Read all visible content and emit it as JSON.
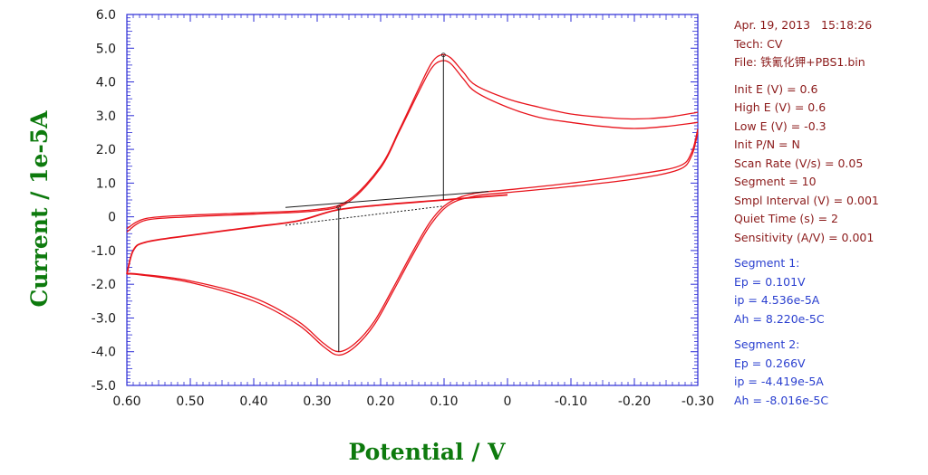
{
  "chart_data": {
    "type": "line",
    "xlabel": "Potential / V",
    "ylabel": "Current / 1e-5A",
    "xlim": [
      0.6,
      -0.3
    ],
    "ylim": [
      -5.0,
      6.0
    ],
    "x_ticks": [
      "0.60",
      "0.50",
      "0.40",
      "0.30",
      "0.20",
      "0.10",
      "0",
      "-0.10",
      "-0.20",
      "-0.30"
    ],
    "y_ticks": [
      "6.0",
      "5.0",
      "4.0",
      "3.0",
      "2.0",
      "1.0",
      "0",
      "-1.0",
      "-2.0",
      "-3.0",
      "-4.0",
      "-5.0"
    ],
    "colors": {
      "curve": "#e8141c",
      "axis": "#2b2bd6",
      "marker": "#1a1a1a",
      "baseline_dash": "#1a1a1a"
    },
    "series": [
      {
        "role": "forward-scan-inner",
        "points": [
          [
            0.6,
            -0.35
          ],
          [
            0.57,
            -0.05
          ],
          [
            0.5,
            0.05
          ],
          [
            0.4,
            0.12
          ],
          [
            0.3,
            0.22
          ],
          [
            0.25,
            0.5
          ],
          [
            0.2,
            1.5
          ],
          [
            0.17,
            2.6
          ],
          [
            0.14,
            3.8
          ],
          [
            0.12,
            4.55
          ],
          [
            0.105,
            4.8
          ],
          [
            0.09,
            4.72
          ],
          [
            0.07,
            4.3
          ],
          [
            0.05,
            3.9
          ],
          [
            0.0,
            3.5
          ],
          [
            -0.05,
            3.25
          ],
          [
            -0.1,
            3.05
          ],
          [
            -0.15,
            2.95
          ],
          [
            -0.2,
            2.9
          ],
          [
            -0.25,
            2.95
          ],
          [
            -0.3,
            3.1
          ]
        ]
      },
      {
        "role": "forward-scan-outer",
        "points": [
          [
            0.6,
            -0.45
          ],
          [
            0.57,
            -0.1
          ],
          [
            0.5,
            0.0
          ],
          [
            0.4,
            0.08
          ],
          [
            0.3,
            0.18
          ],
          [
            0.25,
            0.45
          ],
          [
            0.2,
            1.45
          ],
          [
            0.17,
            2.55
          ],
          [
            0.14,
            3.7
          ],
          [
            0.12,
            4.4
          ],
          [
            0.105,
            4.62
          ],
          [
            0.09,
            4.55
          ],
          [
            0.07,
            4.1
          ],
          [
            0.05,
            3.7
          ],
          [
            0.0,
            3.25
          ],
          [
            -0.05,
            2.95
          ],
          [
            -0.1,
            2.8
          ],
          [
            -0.15,
            2.68
          ],
          [
            -0.2,
            2.62
          ],
          [
            -0.25,
            2.68
          ],
          [
            -0.3,
            2.8
          ]
        ]
      },
      {
        "role": "reverse-scan-inner",
        "points": [
          [
            -0.3,
            2.6
          ],
          [
            -0.29,
            1.9
          ],
          [
            -0.27,
            1.5
          ],
          [
            -0.2,
            1.25
          ],
          [
            -0.1,
            1.0
          ],
          [
            0.0,
            0.8
          ],
          [
            0.05,
            0.7
          ],
          [
            0.09,
            0.45
          ],
          [
            0.12,
            -0.1
          ],
          [
            0.15,
            -1.05
          ],
          [
            0.18,
            -2.1
          ],
          [
            0.21,
            -3.1
          ],
          [
            0.24,
            -3.75
          ],
          [
            0.266,
            -4.0
          ],
          [
            0.29,
            -3.75
          ],
          [
            0.33,
            -3.1
          ],
          [
            0.4,
            -2.4
          ],
          [
            0.5,
            -1.9
          ],
          [
            0.58,
            -1.7
          ],
          [
            0.6,
            -1.68
          ]
        ]
      },
      {
        "role": "reverse-scan-outer",
        "points": [
          [
            -0.3,
            2.5
          ],
          [
            -0.29,
            1.8
          ],
          [
            -0.27,
            1.4
          ],
          [
            -0.2,
            1.12
          ],
          [
            -0.1,
            0.9
          ],
          [
            0.0,
            0.72
          ],
          [
            0.05,
            0.62
          ],
          [
            0.09,
            0.38
          ],
          [
            0.12,
            -0.2
          ],
          [
            0.15,
            -1.15
          ],
          [
            0.18,
            -2.2
          ],
          [
            0.21,
            -3.2
          ],
          [
            0.24,
            -3.85
          ],
          [
            0.266,
            -4.1
          ],
          [
            0.29,
            -3.85
          ],
          [
            0.33,
            -3.2
          ],
          [
            0.4,
            -2.5
          ],
          [
            0.5,
            -1.95
          ],
          [
            0.58,
            -1.72
          ],
          [
            0.6,
            -1.7
          ]
        ]
      },
      {
        "role": "baseline-fill",
        "points": [
          [
            0.6,
            -1.7
          ],
          [
            0.59,
            -1.0
          ],
          [
            0.57,
            -0.75
          ],
          [
            0.5,
            -0.55
          ],
          [
            0.4,
            -0.3
          ],
          [
            0.33,
            -0.12
          ],
          [
            0.27,
            0.2
          ],
          [
            0.2,
            0.35
          ],
          [
            0.1,
            0.5
          ],
          [
            0.0,
            0.65
          ]
        ]
      }
    ],
    "peak_markers": [
      {
        "x": 0.101,
        "y_top": 4.8,
        "y_base": 0.5
      },
      {
        "x": 0.266,
        "y_top": 0.28,
        "y_base": -4.0
      }
    ],
    "baselines": [
      {
        "style": "solid",
        "from": [
          0.35,
          0.28
        ],
        "to": [
          0.03,
          0.75
        ]
      },
      {
        "style": "dotted",
        "from": [
          0.35,
          -0.25
        ],
        "to": [
          0.1,
          0.32
        ]
      }
    ]
  },
  "info": {
    "date": "Apr. 19, 2013",
    "time": "15:18:26",
    "tech": "Tech: CV",
    "file": "File: 铁氰化钾+PBS1.bin",
    "params": [
      "Init E (V) = 0.6",
      "High E (V) = 0.6",
      "Low E (V) = -0.3",
      "Init P/N = N",
      "Scan Rate (V/s) = 0.05",
      "Segment = 10",
      "Smpl Interval (V) = 0.001",
      "Quiet Time (s) = 2",
      "Sensitivity (A/V) = 0.001"
    ],
    "segment1": {
      "title": "Segment 1:",
      "ep": "Ep = 0.101V",
      "ip": "ip = 4.536e-5A",
      "ah": "Ah = 8.220e-5C"
    },
    "segment2": {
      "title": "Segment 2:",
      "ep": "Ep = 0.266V",
      "ip": "ip = -4.419e-5A",
      "ah": "Ah = -8.016e-5C"
    }
  }
}
